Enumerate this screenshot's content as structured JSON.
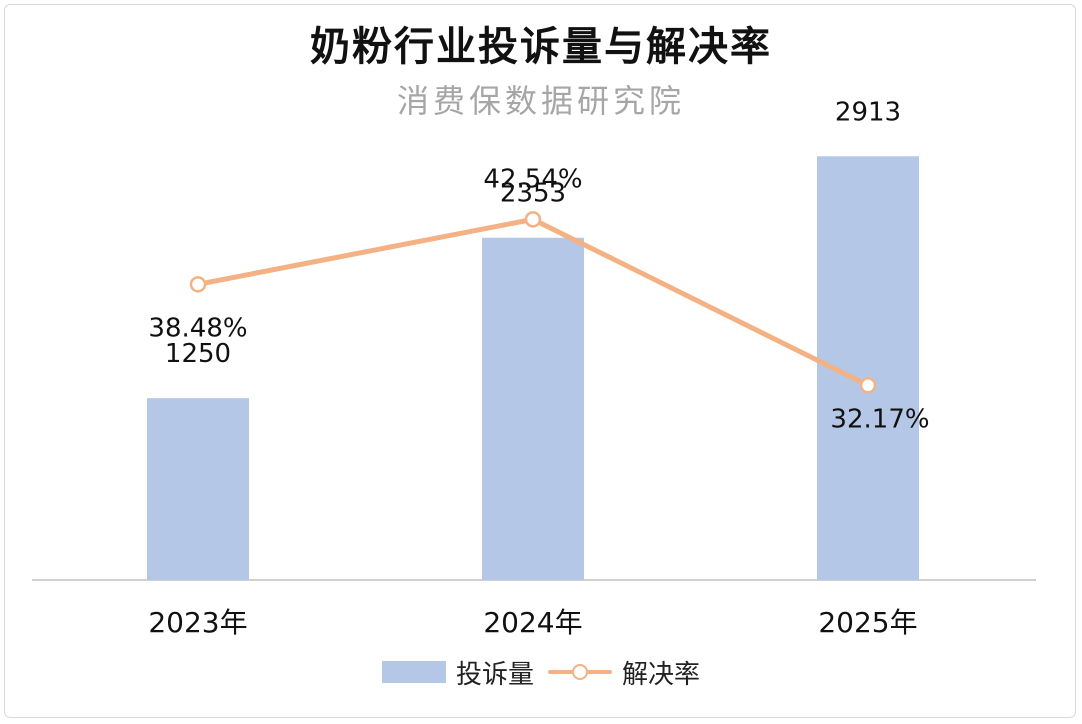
{
  "chart_data": {
    "type": "bar+line",
    "title": "奶粉行业投诉量与解决率",
    "subtitle": "消费保数据研究院",
    "categories": [
      "2023年",
      "2024年",
      "2025年"
    ],
    "series": [
      {
        "name": "投诉量",
        "type": "bar",
        "values": [
          1250,
          2353,
          2913
        ],
        "labels": [
          "1250",
          "2353",
          "2913"
        ],
        "color": "#b4c7e7"
      },
      {
        "name": "解决率",
        "type": "line",
        "values": [
          38.48,
          42.54,
          32.17
        ],
        "labels": [
          "38.48%",
          "42.54%",
          "32.17%"
        ],
        "unit": "%",
        "color": "#f4b183"
      }
    ],
    "bar_ylim": [
      0,
      3300
    ],
    "line_ylim": [
      20,
      50
    ],
    "grid": false,
    "legend": "bottom"
  }
}
